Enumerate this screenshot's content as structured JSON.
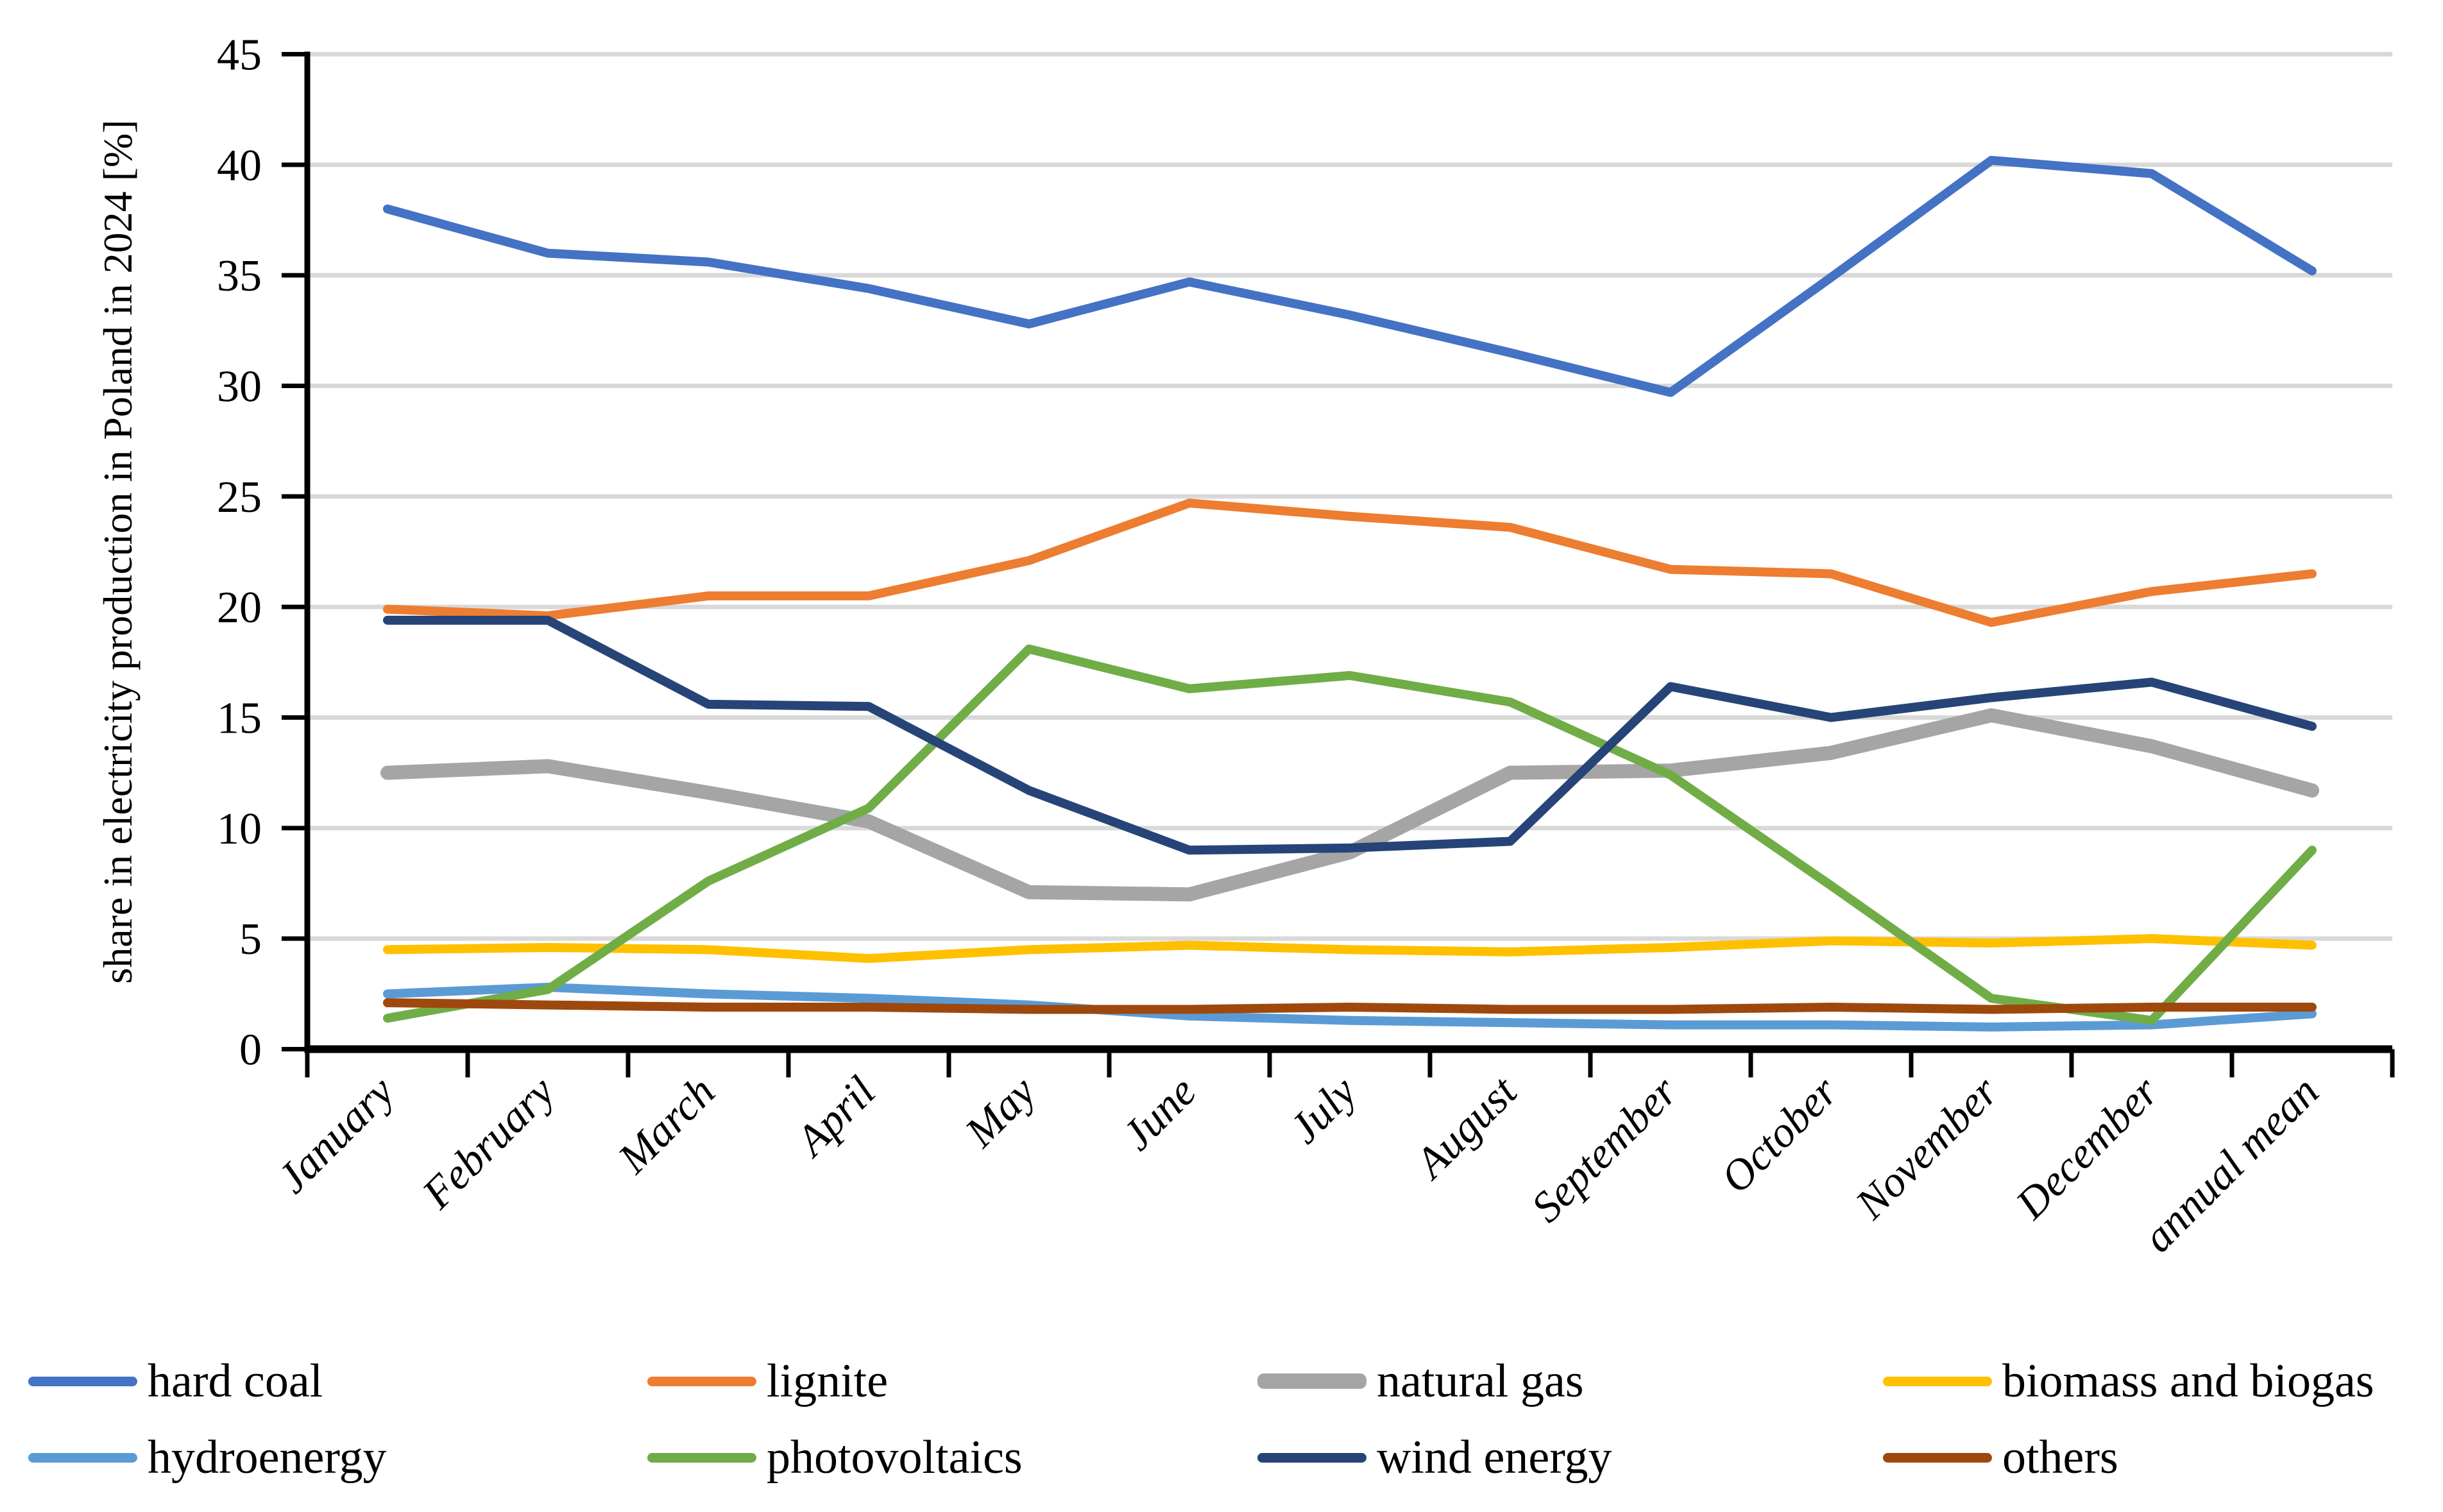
{
  "figure": {
    "background": "#ffffff",
    "gridline_color": "#d9d9d9",
    "axis_color": "#000000",
    "text_color": "#000000"
  },
  "y_axis": {
    "title": "share in electricity production in Poland in 2024 [%]",
    "tick_labels": [
      "0",
      "5",
      "10",
      "15",
      "20",
      "25",
      "30",
      "35",
      "40",
      "45"
    ]
  },
  "x_axis": {
    "categories": [
      "January",
      "February",
      "March",
      "April",
      "May",
      "June",
      "July",
      "August",
      "September",
      "October",
      "November",
      "December",
      "annual mean"
    ]
  },
  "chart_data": {
    "type": "line",
    "title": "",
    "xlabel": "",
    "ylabel": "share in electricity production in Poland in 2024 [%]",
    "ylim": [
      0,
      45
    ],
    "y_major_step": 5,
    "grid": "horizontal",
    "legend_position": "bottom",
    "categories": [
      "January",
      "February",
      "March",
      "April",
      "May",
      "June",
      "July",
      "August",
      "September",
      "October",
      "November",
      "December",
      "annual mean"
    ],
    "series": [
      {
        "name": "hard coal",
        "color": "#4472C4",
        "stroke_width": 14,
        "values": [
          38.0,
          36.0,
          35.6,
          34.4,
          32.8,
          34.7,
          33.2,
          31.5,
          29.7,
          34.9,
          40.2,
          39.6,
          35.2
        ]
      },
      {
        "name": "lignite",
        "color": "#ED7D31",
        "stroke_width": 14,
        "values": [
          19.9,
          19.6,
          20.5,
          20.5,
          22.1,
          24.7,
          24.1,
          23.6,
          21.7,
          21.5,
          19.3,
          20.7,
          21.5
        ]
      },
      {
        "name": "natural gas",
        "color": "#A5A5A5",
        "stroke_width": 22,
        "values": [
          12.5,
          12.8,
          11.6,
          10.3,
          7.1,
          7.0,
          8.9,
          12.5,
          12.6,
          13.4,
          15.1,
          13.7,
          11.7
        ]
      },
      {
        "name": "biomass and biogas",
        "color": "#FFC000",
        "stroke_width": 14,
        "values": [
          4.5,
          4.6,
          4.5,
          4.1,
          4.5,
          4.7,
          4.5,
          4.4,
          4.6,
          4.9,
          4.8,
          5.0,
          4.7
        ]
      },
      {
        "name": "hydroenergy",
        "color": "#5B9BD5",
        "stroke_width": 14,
        "values": [
          2.5,
          2.8,
          2.5,
          2.3,
          2.0,
          1.5,
          1.3,
          1.2,
          1.1,
          1.1,
          1.0,
          1.1,
          1.6
        ]
      },
      {
        "name": "photovoltaics",
        "color": "#70AD47",
        "stroke_width": 14,
        "values": [
          1.4,
          2.7,
          7.6,
          10.9,
          18.1,
          16.3,
          16.9,
          15.7,
          12.4,
          7.4,
          2.3,
          1.3,
          9.0
        ]
      },
      {
        "name": "wind energy",
        "color": "#264478",
        "stroke_width": 14,
        "values": [
          19.4,
          19.4,
          15.6,
          15.5,
          11.7,
          9.0,
          9.1,
          9.4,
          16.4,
          15.0,
          15.9,
          16.6,
          14.6
        ]
      },
      {
        "name": "others",
        "color": "#9E480E",
        "stroke_width": 14,
        "values": [
          2.1,
          2.0,
          1.9,
          1.9,
          1.8,
          1.8,
          1.9,
          1.8,
          1.8,
          1.9,
          1.8,
          1.9,
          1.9
        ]
      }
    ]
  },
  "legend": {
    "row_major_order": [
      "hard coal",
      "lignite",
      "natural gas",
      "biomass and biogas",
      "hydroenergy",
      "photovoltaics",
      "wind energy",
      "others"
    ]
  }
}
